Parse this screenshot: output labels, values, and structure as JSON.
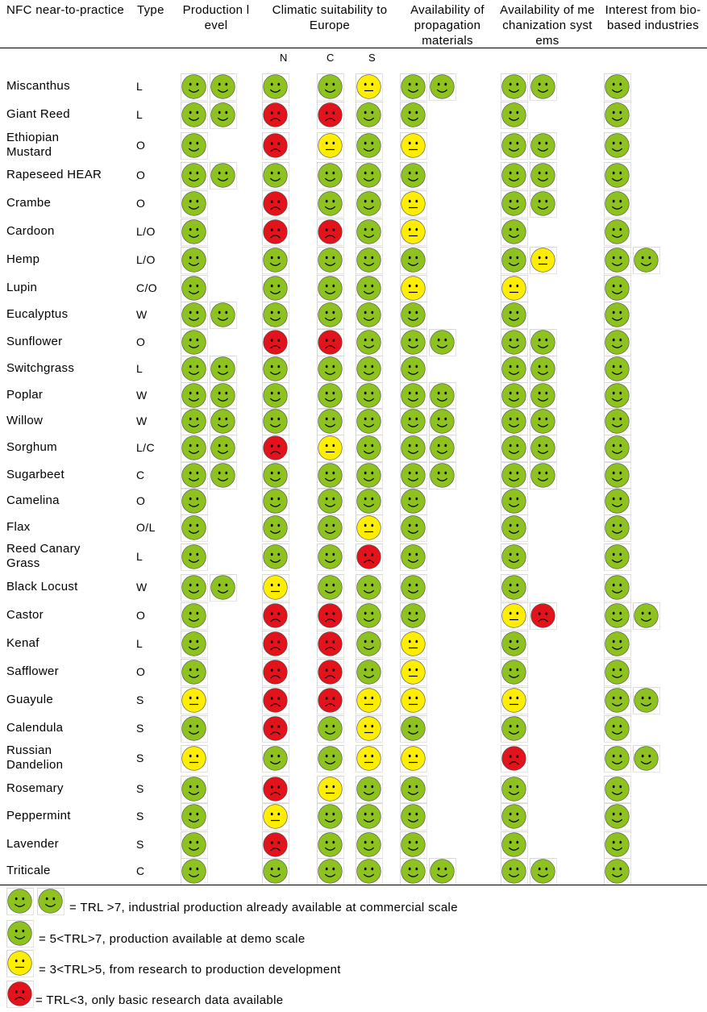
{
  "headers": {
    "crop": "NFC near-to-practice",
    "type": "Type",
    "production": "Production level",
    "climate": "Climatic suitability to Europe",
    "propagation": "Availability of propagation materials",
    "mechanization": "Availability of mechanization systems",
    "interest": "Interest from bio-based industries",
    "climate_sub": [
      "N",
      "C",
      "S"
    ]
  },
  "colors": {
    "green": "#8dc21f",
    "yellow": "#ffee00",
    "red": "#e3121b"
  },
  "rows": [
    {
      "crop": "Miscanthus",
      "type": "L",
      "production": [
        "green",
        "green"
      ],
      "climate": [
        "green",
        "green",
        "yellow"
      ],
      "propagation": [
        "green",
        "green"
      ],
      "mechanization": [
        "green",
        "green"
      ],
      "interest": [
        "green"
      ]
    },
    {
      "crop": "Giant Reed",
      "type": "L",
      "production": [
        "green",
        "green"
      ],
      "climate": [
        "red",
        "red",
        "green"
      ],
      "propagation": [
        "green"
      ],
      "mechanization": [
        "green"
      ],
      "interest": [
        "green"
      ]
    },
    {
      "crop": "Ethiopian Mustard",
      "type": "O",
      "production": [
        "green"
      ],
      "climate": [
        "red",
        "yellow",
        "green"
      ],
      "propagation": [
        "yellow"
      ],
      "mechanization": [
        "green",
        "green"
      ],
      "interest": [
        "green"
      ]
    },
    {
      "crop": "Rapeseed HEAR",
      "type": "O",
      "production": [
        "green",
        "green"
      ],
      "climate": [
        "green",
        "green",
        "green"
      ],
      "propagation": [
        "green"
      ],
      "mechanization": [
        "green",
        "green"
      ],
      "interest": [
        "green"
      ]
    },
    {
      "crop": "Crambe",
      "type": "O",
      "production": [
        "green"
      ],
      "climate": [
        "red",
        "green",
        "green"
      ],
      "propagation": [
        "yellow"
      ],
      "mechanization": [
        "green",
        "green"
      ],
      "interest": [
        "green"
      ]
    },
    {
      "crop": "Cardoon",
      "type": "L/O",
      "production": [
        "green"
      ],
      "climate": [
        "red",
        "red",
        "green"
      ],
      "propagation": [
        "yellow"
      ],
      "mechanization": [
        "green"
      ],
      "interest": [
        "green"
      ]
    },
    {
      "crop": "Hemp",
      "type": "L/O",
      "production": [
        "green"
      ],
      "climate": [
        "green",
        "green",
        "green"
      ],
      "propagation": [
        "green"
      ],
      "mechanization": [
        "green",
        "yellow"
      ],
      "interest": [
        "green",
        "green"
      ]
    },
    {
      "crop": "Lupin",
      "type": "C/O",
      "production": [
        "green"
      ],
      "climate": [
        "green",
        "green",
        "green"
      ],
      "propagation": [
        "yellow"
      ],
      "mechanization": [
        "yellow"
      ],
      "interest": [
        "green"
      ]
    },
    {
      "crop": "Eucalyptus",
      "type": "W",
      "production": [
        "green",
        "green"
      ],
      "climate": [
        "green",
        "green",
        "green"
      ],
      "propagation": [
        "green"
      ],
      "mechanization": [
        "green"
      ],
      "interest": [
        "green"
      ]
    },
    {
      "crop": "Sunflower",
      "type": "O",
      "production": [
        "green"
      ],
      "climate": [
        "red",
        "red",
        "green"
      ],
      "propagation": [
        "green",
        "green"
      ],
      "mechanization": [
        "green",
        "green"
      ],
      "interest": [
        "green"
      ]
    },
    {
      "crop": "Switchgrass",
      "type": "L",
      "production": [
        "green",
        "green"
      ],
      "climate": [
        "green",
        "green",
        "green"
      ],
      "propagation": [
        "green"
      ],
      "mechanization": [
        "green",
        "green"
      ],
      "interest": [
        "green"
      ]
    },
    {
      "crop": "Poplar",
      "type": "W",
      "production": [
        "green",
        "green"
      ],
      "climate": [
        "green",
        "green",
        "green"
      ],
      "propagation": [
        "green",
        "green"
      ],
      "mechanization": [
        "green",
        "green"
      ],
      "interest": [
        "green"
      ]
    },
    {
      "crop": "Willow",
      "type": "W",
      "production": [
        "green",
        "green"
      ],
      "climate": [
        "green",
        "green",
        "green"
      ],
      "propagation": [
        "green",
        "green"
      ],
      "mechanization": [
        "green",
        "green"
      ],
      "interest": [
        "green"
      ]
    },
    {
      "crop": "Sorghum",
      "type": "L/C",
      "production": [
        "green",
        "green"
      ],
      "climate": [
        "red",
        "yellow",
        "green"
      ],
      "propagation": [
        "green",
        "green"
      ],
      "mechanization": [
        "green",
        "green"
      ],
      "interest": [
        "green"
      ]
    },
    {
      "crop": "Sugarbeet",
      "type": "C",
      "production": [
        "green",
        "green"
      ],
      "climate": [
        "green",
        "green",
        "green"
      ],
      "propagation": [
        "green",
        "green"
      ],
      "mechanization": [
        "green",
        "green"
      ],
      "interest": [
        "green"
      ]
    },
    {
      "crop": "Camelina",
      "type": "O",
      "production": [
        "green"
      ],
      "climate": [
        "green",
        "green",
        "green"
      ],
      "propagation": [
        "green"
      ],
      "mechanization": [
        "green"
      ],
      "interest": [
        "green"
      ]
    },
    {
      "crop": "Flax",
      "type": "O/L",
      "production": [
        "green"
      ],
      "climate": [
        "green",
        "green",
        "yellow"
      ],
      "propagation": [
        "green"
      ],
      "mechanization": [
        "green"
      ],
      "interest": [
        "green"
      ]
    },
    {
      "crop": "Reed Canary Grass",
      "type": "L",
      "production": [
        "green"
      ],
      "climate": [
        "green",
        "green",
        "red"
      ],
      "propagation": [
        "green"
      ],
      "mechanization": [
        "green"
      ],
      "interest": [
        "green"
      ]
    },
    {
      "crop": "Black Locust",
      "type": "W",
      "production": [
        "green",
        "green"
      ],
      "climate": [
        "yellow",
        "green",
        "green"
      ],
      "propagation": [
        "green"
      ],
      "mechanization": [
        "green"
      ],
      "interest": [
        "green"
      ]
    },
    {
      "crop": "Castor",
      "type": "O",
      "production": [
        "green"
      ],
      "climate": [
        "red",
        "red",
        "green"
      ],
      "propagation": [
        "green"
      ],
      "mechanization": [
        "yellow",
        "red"
      ],
      "interest": [
        "green",
        "green"
      ]
    },
    {
      "crop": "Kenaf",
      "type": "L",
      "production": [
        "green"
      ],
      "climate": [
        "red",
        "red",
        "green"
      ],
      "propagation": [
        "yellow"
      ],
      "mechanization": [
        "green"
      ],
      "interest": [
        "green"
      ]
    },
    {
      "crop": "Safflower",
      "type": "O",
      "production": [
        "green"
      ],
      "climate": [
        "red",
        "red",
        "green"
      ],
      "propagation": [
        "yellow"
      ],
      "mechanization": [
        "green"
      ],
      "interest": [
        "green"
      ]
    },
    {
      "crop": "Guayule",
      "type": "S",
      "production": [
        "yellow"
      ],
      "climate": [
        "red",
        "red",
        "yellow"
      ],
      "propagation": [
        "yellow"
      ],
      "mechanization": [
        "yellow"
      ],
      "interest": [
        "green",
        "green"
      ]
    },
    {
      "crop": "Calendula",
      "type": "S",
      "production": [
        "green"
      ],
      "climate": [
        "red",
        "green",
        "yellow"
      ],
      "propagation": [
        "green"
      ],
      "mechanization": [
        "green"
      ],
      "interest": [
        "green"
      ]
    },
    {
      "crop": "Russian Dandelion",
      "type": "S",
      "production": [
        "yellow"
      ],
      "climate": [
        "green",
        "green",
        "yellow"
      ],
      "propagation": [
        "yellow"
      ],
      "mechanization": [
        "red"
      ],
      "interest": [
        "green",
        "green"
      ]
    },
    {
      "crop": "Rosemary",
      "type": "S",
      "production": [
        "green"
      ],
      "climate": [
        "red",
        "yellow",
        "green"
      ],
      "propagation": [
        "green"
      ],
      "mechanization": [
        "green"
      ],
      "interest": [
        "green"
      ]
    },
    {
      "crop": "Peppermint",
      "type": "S",
      "production": [
        "green"
      ],
      "climate": [
        "yellow",
        "green",
        "green"
      ],
      "propagation": [
        "green"
      ],
      "mechanization": [
        "green"
      ],
      "interest": [
        "green"
      ]
    },
    {
      "crop": "Lavender",
      "type": "S",
      "production": [
        "green"
      ],
      "climate": [
        "red",
        "green",
        "green"
      ],
      "propagation": [
        "green"
      ],
      "mechanization": [
        "green"
      ],
      "interest": [
        "green"
      ]
    },
    {
      "crop": "Triticale",
      "type": "C",
      "production": [
        "green"
      ],
      "climate": [
        "green",
        "green",
        "green"
      ],
      "propagation": [
        "green",
        "green"
      ],
      "mechanization": [
        "green",
        "green"
      ],
      "interest": [
        "green"
      ]
    }
  ],
  "legend": [
    {
      "faces": [
        "green",
        "green"
      ],
      "text": "= TRL >7, industrial production already available at commercial scale"
    },
    {
      "faces": [
        "green"
      ],
      "text": "= 5<TRL>7, production available at demo scale"
    },
    {
      "faces": [
        "yellow"
      ],
      "text": "= 3<TRL>5, from research to production development"
    },
    {
      "faces": [
        "red"
      ],
      "text": "= TRL<3, only basic research data available"
    }
  ]
}
